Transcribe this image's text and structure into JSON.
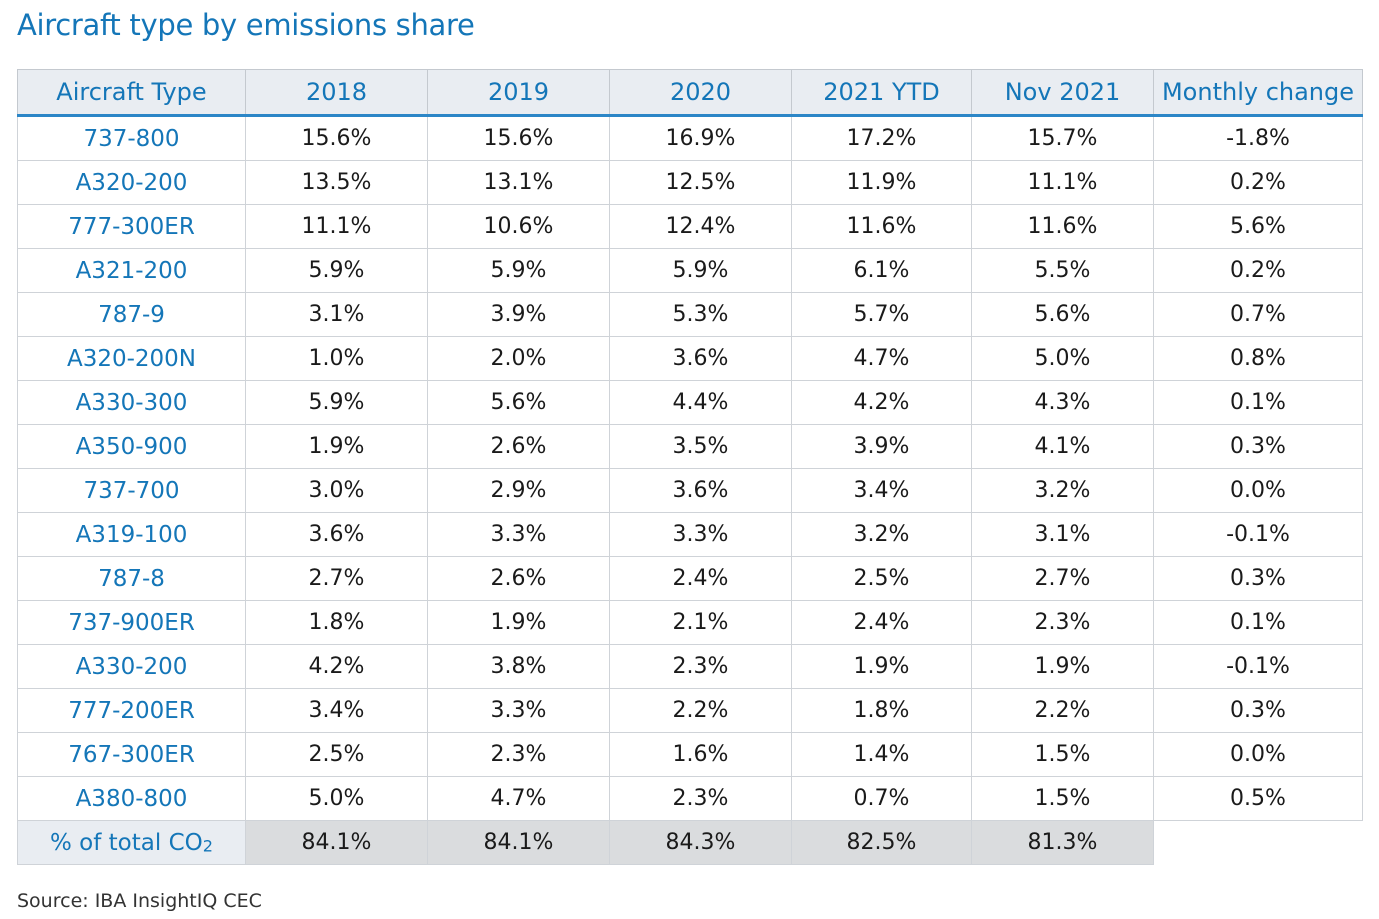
{
  "chart_data": {
    "type": "table",
    "title": "Aircraft type by emissions share",
    "source": "Source: IBA InsightIQ CEC",
    "columns": [
      "Aircraft Type",
      "2018",
      "2019",
      "2020",
      "2021 YTD",
      "Nov 2021",
      "Monthly change"
    ],
    "rows": [
      [
        "737-800",
        "15.6%",
        "15.6%",
        "16.9%",
        "17.2%",
        "15.7%",
        "-1.8%"
      ],
      [
        "A320-200",
        "13.5%",
        "13.1%",
        "12.5%",
        "11.9%",
        "11.1%",
        "0.2%"
      ],
      [
        "777-300ER",
        "11.1%",
        "10.6%",
        "12.4%",
        "11.6%",
        "11.6%",
        "5.6%"
      ],
      [
        "A321-200",
        "5.9%",
        "5.9%",
        "5.9%",
        "6.1%",
        "5.5%",
        "0.2%"
      ],
      [
        "787-9",
        "3.1%",
        "3.9%",
        "5.3%",
        "5.7%",
        "5.6%",
        "0.7%"
      ],
      [
        "A320-200N",
        "1.0%",
        "2.0%",
        "3.6%",
        "4.7%",
        "5.0%",
        "0.8%"
      ],
      [
        "A330-300",
        "5.9%",
        "5.6%",
        "4.4%",
        "4.2%",
        "4.3%",
        "0.1%"
      ],
      [
        "A350-900",
        "1.9%",
        "2.6%",
        "3.5%",
        "3.9%",
        "4.1%",
        "0.3%"
      ],
      [
        "737-700",
        "3.0%",
        "2.9%",
        "3.6%",
        "3.4%",
        "3.2%",
        "0.0%"
      ],
      [
        "A319-100",
        "3.6%",
        "3.3%",
        "3.3%",
        "3.2%",
        "3.1%",
        "-0.1%"
      ],
      [
        "787-8",
        "2.7%",
        "2.6%",
        "2.4%",
        "2.5%",
        "2.7%",
        "0.3%"
      ],
      [
        "737-900ER",
        "1.8%",
        "1.9%",
        "2.1%",
        "2.4%",
        "2.3%",
        "0.1%"
      ],
      [
        "A330-200",
        "4.2%",
        "3.8%",
        "2.3%",
        "1.9%",
        "1.9%",
        "-0.1%"
      ],
      [
        "777-200ER",
        "3.4%",
        "3.3%",
        "2.2%",
        "1.8%",
        "2.2%",
        "0.3%"
      ],
      [
        "767-300ER",
        "2.5%",
        "2.3%",
        "1.6%",
        "1.4%",
        "1.5%",
        "0.0%"
      ],
      [
        "A380-800",
        "5.0%",
        "4.7%",
        "2.3%",
        "0.7%",
        "1.5%",
        "0.5%"
      ]
    ],
    "total_row": {
      "label_prefix": "% of total CO",
      "label_subscript": "2",
      "values": [
        "84.1%",
        "84.1%",
        "84.3%",
        "82.5%",
        "81.3%"
      ]
    },
    "colors": {
      "accent": "#1476b8",
      "header_bg": "#e9edf2",
      "header_rule": "#2b86c7",
      "total_bg": "#dadcde",
      "border": "#cfd3d8"
    }
  }
}
